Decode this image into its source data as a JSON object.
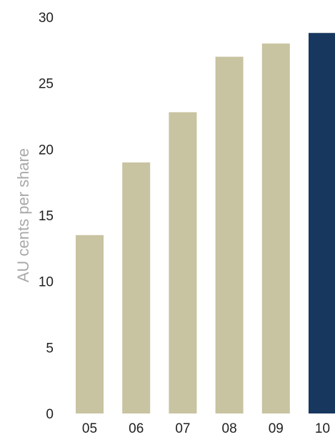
{
  "chart_data": {
    "type": "bar",
    "title": "",
    "xlabel": "",
    "ylabel": "AU cents per share",
    "categories": [
      "05",
      "06",
      "07",
      "08",
      "09",
      "10"
    ],
    "values": [
      13.5,
      19,
      22.8,
      27,
      28,
      28.8
    ],
    "highlight_index": 5,
    "ylim": [
      0,
      30
    ],
    "yticks": [
      0,
      5,
      10,
      15,
      20,
      25,
      30
    ],
    "grid": false,
    "colors": {
      "bar": "#c8c3a0",
      "highlight": "#17375e"
    }
  }
}
